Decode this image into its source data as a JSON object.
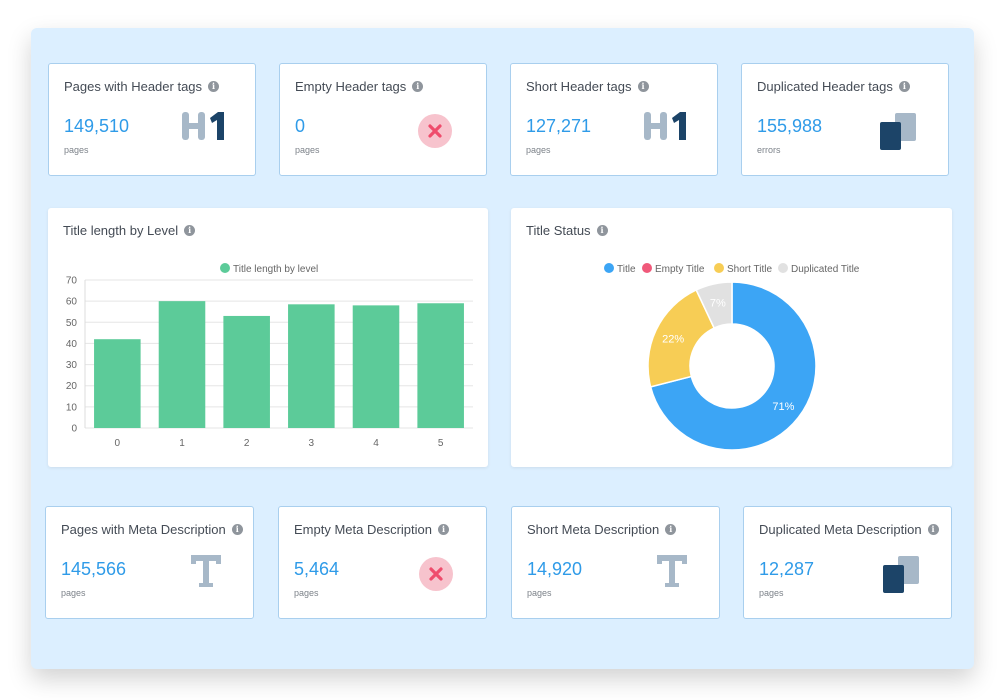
{
  "header_cards": [
    {
      "title": "Pages with Header tags",
      "value": "149,510",
      "unit": "pages",
      "icon": "h1-icon"
    },
    {
      "title": "Empty Header tags",
      "value": "0",
      "unit": "pages",
      "icon": "error-x-icon"
    },
    {
      "title": "Short Header tags",
      "value": "127,271",
      "unit": "pages",
      "icon": "h1-icon"
    },
    {
      "title": "Duplicated Header tags",
      "value": "155,988",
      "unit": "errors",
      "icon": "duplicate-icon"
    }
  ],
  "meta_cards": [
    {
      "title": "Pages with Meta Description",
      "value": "145,566",
      "unit": "pages",
      "icon": "text-t-icon"
    },
    {
      "title": "Empty Meta Description",
      "value": "5,464",
      "unit": "pages",
      "icon": "error-x-icon"
    },
    {
      "title": "Short Meta Description",
      "value": "14,920",
      "unit": "pages",
      "icon": "text-t-icon"
    },
    {
      "title": "Duplicated Meta Description",
      "value": "12,287",
      "unit": "pages",
      "icon": "duplicate-icon"
    }
  ],
  "info_glyph": "i",
  "bar_card": {
    "title": "Title length by Level"
  },
  "donut_card": {
    "title": "Title Status"
  },
  "colors": {
    "value_blue": "#2f9be8",
    "bar_green": "#5ccb99",
    "title_blue": "#3ca5f5",
    "empty_red": "#f0597a",
    "short_yellow": "#f7cd55",
    "duplicated_grey": "#e1e1e1",
    "icon_dark": "#1c4468",
    "icon_light": "#a7b8c8",
    "error_bg": "#f7c3cd",
    "error_x": "#ef4c6c"
  },
  "chart_data": [
    {
      "type": "bar",
      "title": "",
      "legend": [
        "Title length by level"
      ],
      "legend_position": "top",
      "categories": [
        "0",
        "1",
        "2",
        "3",
        "4",
        "5"
      ],
      "series": [
        {
          "name": "Title length by level",
          "values": [
            42,
            60,
            53,
            58.5,
            58,
            59
          ]
        }
      ],
      "ylim": [
        0,
        70
      ],
      "yticks": [
        "0",
        "10",
        "20",
        "30",
        "40",
        "50",
        "60",
        "70"
      ],
      "grid": true
    },
    {
      "type": "pie",
      "title": "",
      "legend": [
        "Title",
        "Empty Title",
        "Short Title",
        "Duplicated Title"
      ],
      "legend_position": "top",
      "values": [
        71,
        0,
        22,
        7
      ],
      "labels": [
        "71%",
        "",
        "22%",
        "7%"
      ]
    }
  ]
}
